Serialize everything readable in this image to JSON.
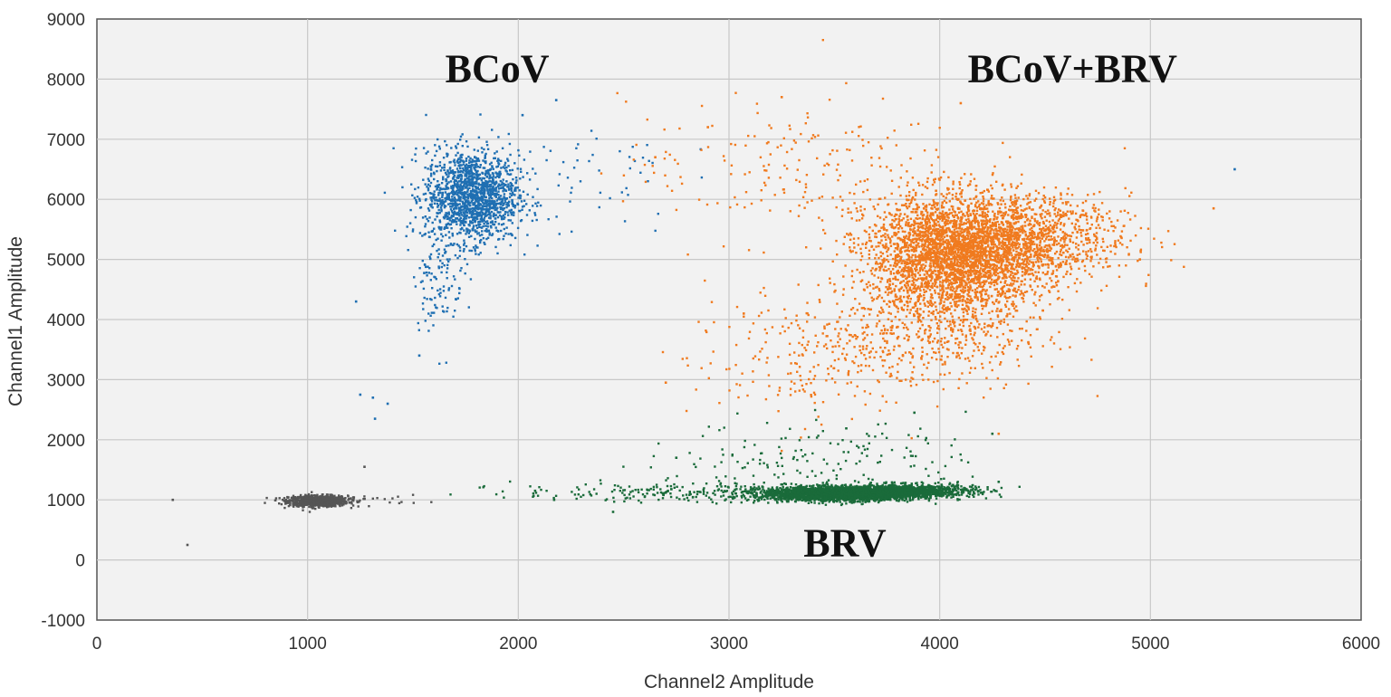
{
  "chart_data": {
    "type": "scatter",
    "xlabel": "Channel2 Amplitude",
    "ylabel": "Channel1 Amplitude",
    "xlim": [
      0,
      6000
    ],
    "ylim": [
      -1000,
      9000
    ],
    "x_ticks": [
      0,
      1000,
      2000,
      3000,
      4000,
      5000,
      6000
    ],
    "y_ticks": [
      -1000,
      0,
      1000,
      2000,
      3000,
      4000,
      5000,
      6000,
      7000,
      8000,
      9000
    ],
    "grid": true,
    "annotations": [
      {
        "text": "BCoV",
        "x": 1900,
        "y": 7950
      },
      {
        "text": "BCoV+BRV",
        "x": 4630,
        "y": 7950
      },
      {
        "text": "BRV",
        "x": 3550,
        "y": 60
      }
    ],
    "series": [
      {
        "color": "#555555",
        "clusters": [
          {
            "cx": 1050,
            "cy": 980,
            "sx": 70,
            "sy": 45,
            "n": 900
          },
          {
            "cx": 1200,
            "cy": 1000,
            "sx": 180,
            "sy": 40,
            "n": 40
          }
        ],
        "points": [
          [
            430,
            250
          ],
          [
            360,
            1000
          ],
          [
            1270,
            1550
          ]
        ]
      },
      {
        "color": "#1f6fb2",
        "clusters": [
          {
            "cx": 1780,
            "cy": 6050,
            "sx": 110,
            "sy": 380,
            "n": 1500
          },
          {
            "cx": 1620,
            "cy": 4800,
            "sx": 60,
            "sy": 500,
            "n": 120
          },
          {
            "cx": 2250,
            "cy": 6400,
            "sx": 250,
            "sy": 500,
            "n": 60
          }
        ],
        "points": [
          [
            1230,
            4300
          ],
          [
            1250,
            2750
          ],
          [
            1310,
            2700
          ],
          [
            1380,
            2600
          ],
          [
            1320,
            2350
          ],
          [
            1530,
            3400
          ],
          [
            2180,
            7650
          ],
          [
            2020,
            7400
          ],
          [
            5400,
            6500
          ]
        ]
      },
      {
        "color": "#f07a1e",
        "clusters": [
          {
            "cx": 4080,
            "cy": 5050,
            "sx": 210,
            "sy": 500,
            "n": 3200
          },
          {
            "cx": 4400,
            "cy": 5350,
            "sx": 250,
            "sy": 350,
            "n": 1000
          },
          {
            "cx": 3900,
            "cy": 3700,
            "sx": 300,
            "sy": 450,
            "n": 450
          },
          {
            "cx": 3300,
            "cy": 3300,
            "sx": 250,
            "sy": 500,
            "n": 150
          },
          {
            "cx": 3300,
            "cy": 6500,
            "sx": 400,
            "sy": 600,
            "n": 200
          }
        ],
        "points": [
          [
            2900,
            7200
          ],
          [
            3250,
            7700
          ],
          [
            4100,
            7600
          ],
          [
            4950,
            5000
          ],
          [
            5300,
            5850
          ],
          [
            2700,
            2950
          ],
          [
            2650,
            6700
          ],
          [
            3070,
            4100
          ],
          [
            4280,
            2100
          ]
        ]
      },
      {
        "color": "#1a6b3a",
        "clusters": [
          {
            "cx": 3520,
            "cy": 1100,
            "sx": 180,
            "sy": 55,
            "n": 2600
          },
          {
            "cx": 3850,
            "cy": 1150,
            "sx": 160,
            "sy": 55,
            "n": 1000
          },
          {
            "cx": 2800,
            "cy": 1120,
            "sx": 400,
            "sy": 80,
            "n": 250
          },
          {
            "cx": 3450,
            "cy": 1750,
            "sx": 350,
            "sy": 300,
            "n": 150
          }
        ],
        "points": [
          [
            2450,
            800
          ],
          [
            2750,
            1700
          ],
          [
            3880,
            2450
          ],
          [
            4250,
            2100
          ],
          [
            2170,
            1000
          ],
          [
            2080,
            1150
          ],
          [
            4280,
            1300
          ]
        ]
      }
    ]
  }
}
